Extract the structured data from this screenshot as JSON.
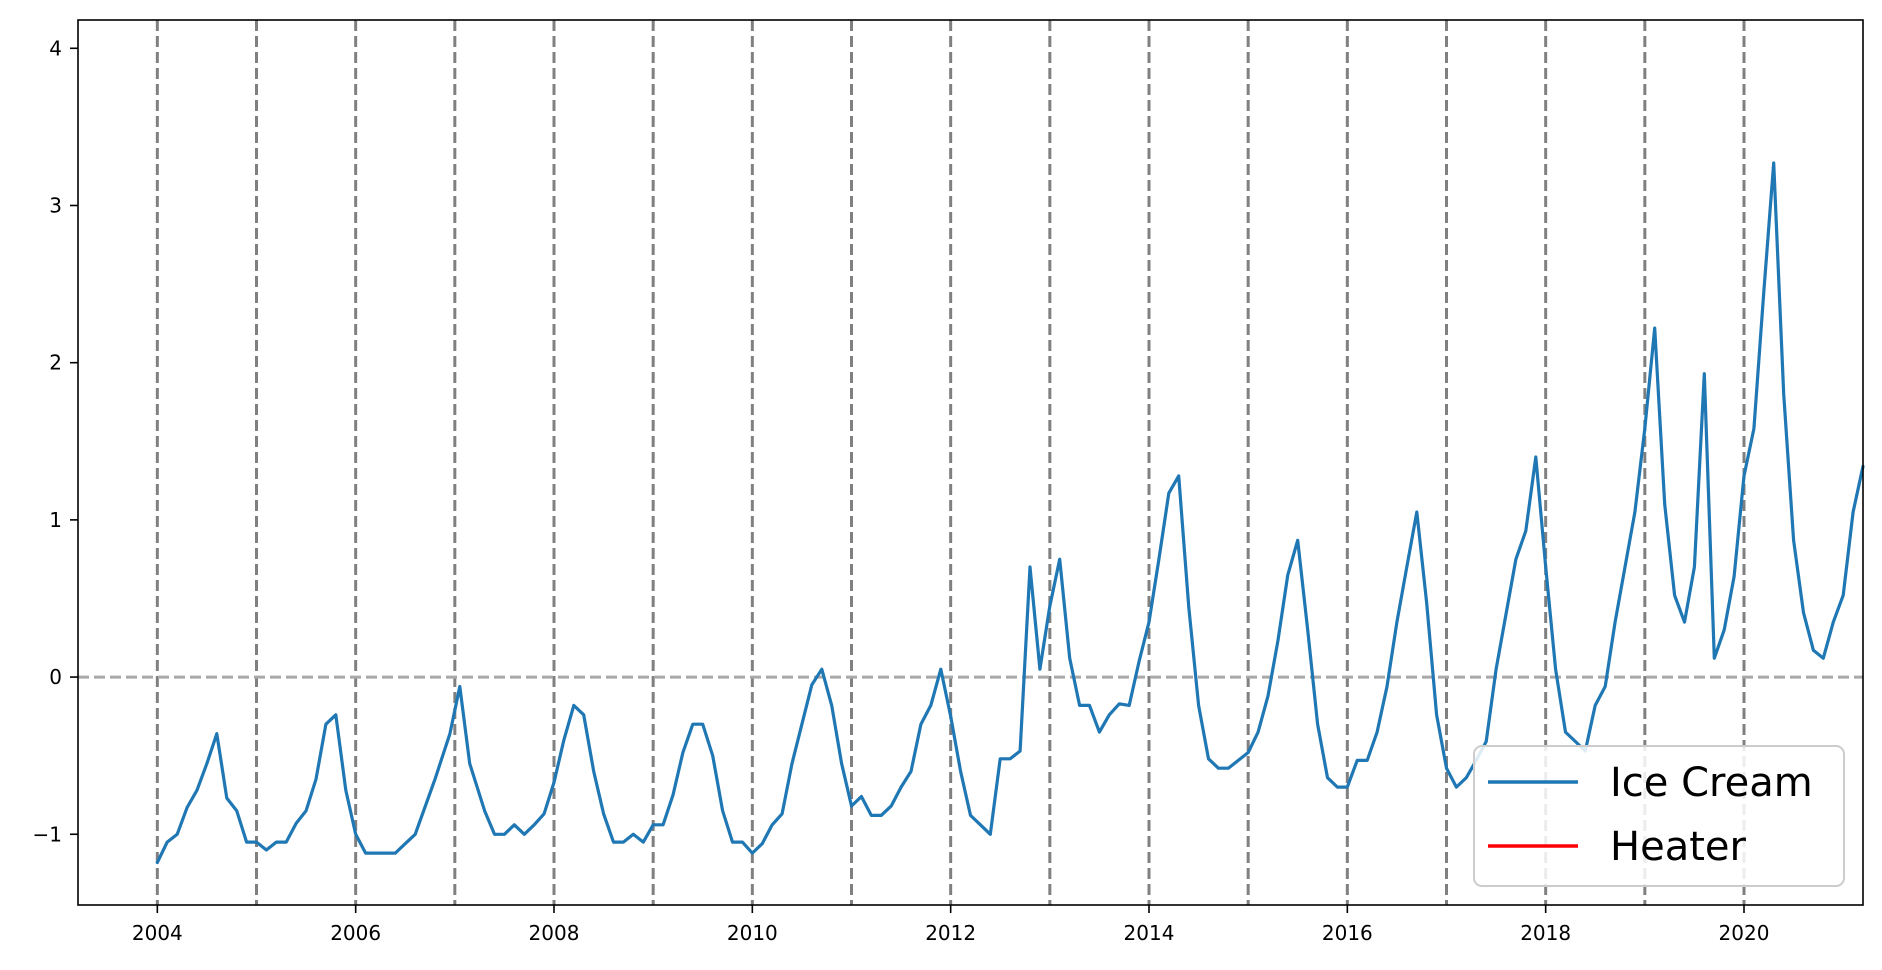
{
  "chart_data": {
    "type": "line",
    "title": "",
    "xlabel": "",
    "ylabel": "",
    "xlim": [
      2003.2,
      2021.2
    ],
    "ylim": [
      -1.45,
      4.18
    ],
    "x_ticks": [
      2004,
      2006,
      2008,
      2010,
      2012,
      2014,
      2016,
      2018,
      2020
    ],
    "y_ticks": [
      -1,
      0,
      1,
      2,
      3,
      4
    ],
    "vlines_years": [
      2004,
      2005,
      2006,
      2007,
      2008,
      2009,
      2010,
      2011,
      2012,
      2013,
      2014,
      2015,
      2016,
      2017,
      2018,
      2019,
      2020
    ],
    "hline_y": 0,
    "legend_position": "lower right",
    "series": [
      {
        "name": "Ice Cream",
        "color": "#1f77b4",
        "points": [
          [
            2004.0,
            -1.18
          ],
          [
            2004.1,
            -1.05
          ],
          [
            2004.2,
            -1.0
          ],
          [
            2004.3,
            -0.83
          ],
          [
            2004.4,
            -0.72
          ],
          [
            2004.5,
            -0.55
          ],
          [
            2004.6,
            -0.36
          ],
          [
            2004.7,
            -0.77
          ],
          [
            2004.8,
            -0.85
          ],
          [
            2004.9,
            -1.05
          ],
          [
            2005.0,
            -1.05
          ],
          [
            2005.1,
            -1.1
          ],
          [
            2005.2,
            -1.05
          ],
          [
            2005.3,
            -1.05
          ],
          [
            2005.4,
            -0.93
          ],
          [
            2005.5,
            -0.85
          ],
          [
            2005.6,
            -0.65
          ],
          [
            2005.7,
            -0.3
          ],
          [
            2005.8,
            -0.24
          ],
          [
            2005.9,
            -0.72
          ],
          [
            2006.0,
            -1.0
          ],
          [
            2006.1,
            -1.12
          ],
          [
            2006.2,
            -1.12
          ],
          [
            2006.3,
            -1.12
          ],
          [
            2006.4,
            -1.12
          ],
          [
            2006.5,
            -1.06
          ],
          [
            2006.6,
            -1.0
          ],
          [
            2006.8,
            -0.65
          ],
          [
            2006.95,
            -0.36
          ],
          [
            2007.05,
            -0.06
          ],
          [
            2007.15,
            -0.55
          ],
          [
            2007.3,
            -0.85
          ],
          [
            2007.4,
            -1.0
          ],
          [
            2007.5,
            -1.0
          ],
          [
            2007.6,
            -0.94
          ],
          [
            2007.7,
            -1.0
          ],
          [
            2007.8,
            -0.94
          ],
          [
            2007.9,
            -0.87
          ],
          [
            2008.0,
            -0.67
          ],
          [
            2008.1,
            -0.4
          ],
          [
            2008.2,
            -0.18
          ],
          [
            2008.3,
            -0.24
          ],
          [
            2008.4,
            -0.6
          ],
          [
            2008.5,
            -0.87
          ],
          [
            2008.6,
            -1.05
          ],
          [
            2008.7,
            -1.05
          ],
          [
            2008.8,
            -1.0
          ],
          [
            2008.9,
            -1.05
          ],
          [
            2009.0,
            -0.94
          ],
          [
            2009.1,
            -0.94
          ],
          [
            2009.2,
            -0.75
          ],
          [
            2009.3,
            -0.48
          ],
          [
            2009.4,
            -0.3
          ],
          [
            2009.5,
            -0.3
          ],
          [
            2009.6,
            -0.5
          ],
          [
            2009.7,
            -0.85
          ],
          [
            2009.8,
            -1.05
          ],
          [
            2009.9,
            -1.05
          ],
          [
            2010.0,
            -1.12
          ],
          [
            2010.1,
            -1.06
          ],
          [
            2010.2,
            -0.94
          ],
          [
            2010.3,
            -0.87
          ],
          [
            2010.4,
            -0.55
          ],
          [
            2010.5,
            -0.3
          ],
          [
            2010.6,
            -0.05
          ],
          [
            2010.7,
            0.05
          ],
          [
            2010.8,
            -0.18
          ],
          [
            2010.9,
            -0.55
          ],
          [
            2011.0,
            -0.82
          ],
          [
            2011.1,
            -0.76
          ],
          [
            2011.2,
            -0.88
          ],
          [
            2011.3,
            -0.88
          ],
          [
            2011.4,
            -0.82
          ],
          [
            2011.5,
            -0.7
          ],
          [
            2011.6,
            -0.6
          ],
          [
            2011.7,
            -0.3
          ],
          [
            2011.8,
            -0.18
          ],
          [
            2011.9,
            0.05
          ],
          [
            2012.0,
            -0.25
          ],
          [
            2012.1,
            -0.6
          ],
          [
            2012.2,
            -0.88
          ],
          [
            2012.3,
            -0.94
          ],
          [
            2012.4,
            -1.0
          ],
          [
            2012.5,
            -0.52
          ],
          [
            2012.6,
            -0.52
          ],
          [
            2012.7,
            -0.47
          ],
          [
            2012.8,
            0.7
          ],
          [
            2012.9,
            0.05
          ],
          [
            2013.0,
            0.45
          ],
          [
            2013.1,
            0.75
          ],
          [
            2013.2,
            0.12
          ],
          [
            2013.3,
            -0.18
          ],
          [
            2013.4,
            -0.18
          ],
          [
            2013.5,
            -0.35
          ],
          [
            2013.6,
            -0.24
          ],
          [
            2013.7,
            -0.17
          ],
          [
            2013.8,
            -0.18
          ],
          [
            2013.9,
            0.1
          ],
          [
            2014.0,
            0.35
          ],
          [
            2014.1,
            0.75
          ],
          [
            2014.2,
            1.17
          ],
          [
            2014.3,
            1.28
          ],
          [
            2014.4,
            0.45
          ],
          [
            2014.5,
            -0.18
          ],
          [
            2014.6,
            -0.52
          ],
          [
            2014.7,
            -0.58
          ],
          [
            2014.8,
            -0.58
          ],
          [
            2014.9,
            -0.53
          ],
          [
            2015.0,
            -0.48
          ],
          [
            2015.1,
            -0.35
          ],
          [
            2015.2,
            -0.12
          ],
          [
            2015.3,
            0.23
          ],
          [
            2015.4,
            0.65
          ],
          [
            2015.5,
            0.87
          ],
          [
            2015.6,
            0.3
          ],
          [
            2015.7,
            -0.3
          ],
          [
            2015.8,
            -0.64
          ],
          [
            2015.9,
            -0.7
          ],
          [
            2016.0,
            -0.7
          ],
          [
            2016.1,
            -0.53
          ],
          [
            2016.2,
            -0.53
          ],
          [
            2016.3,
            -0.35
          ],
          [
            2016.4,
            -0.06
          ],
          [
            2016.5,
            0.35
          ],
          [
            2016.6,
            0.7
          ],
          [
            2016.7,
            1.05
          ],
          [
            2016.8,
            0.47
          ],
          [
            2016.9,
            -0.24
          ],
          [
            2017.0,
            -0.58
          ],
          [
            2017.1,
            -0.7
          ],
          [
            2017.2,
            -0.64
          ],
          [
            2017.3,
            -0.53
          ],
          [
            2017.4,
            -0.41
          ],
          [
            2017.5,
            0.05
          ],
          [
            2017.6,
            0.4
          ],
          [
            2017.7,
            0.75
          ],
          [
            2017.8,
            0.93
          ],
          [
            2017.9,
            1.4
          ],
          [
            2018.0,
            0.7
          ],
          [
            2018.1,
            0.05
          ],
          [
            2018.2,
            -0.35
          ],
          [
            2018.3,
            -0.41
          ],
          [
            2018.4,
            -0.47
          ],
          [
            2018.5,
            -0.18
          ],
          [
            2018.6,
            -0.06
          ],
          [
            2018.7,
            0.35
          ],
          [
            2018.8,
            0.7
          ],
          [
            2018.9,
            1.05
          ],
          [
            2019.0,
            1.58
          ],
          [
            2019.1,
            2.22
          ],
          [
            2019.2,
            1.1
          ],
          [
            2019.3,
            0.52
          ],
          [
            2019.4,
            0.35
          ],
          [
            2019.5,
            0.7
          ],
          [
            2019.6,
            1.93
          ],
          [
            2019.7,
            0.12
          ],
          [
            2019.8,
            0.3
          ],
          [
            2019.9,
            0.64
          ],
          [
            2020.0,
            1.28
          ],
          [
            2020.1,
            1.58
          ],
          [
            2020.2,
            2.45
          ],
          [
            2020.3,
            3.27
          ],
          [
            2020.4,
            1.8
          ],
          [
            2020.5,
            0.87
          ],
          [
            2020.6,
            0.41
          ],
          [
            2020.7,
            0.17
          ],
          [
            2020.8,
            0.12
          ],
          [
            2020.9,
            0.35
          ],
          [
            2021.0,
            0.52
          ],
          [
            2021.1,
            1.05
          ],
          [
            2021.2,
            1.34
          ]
        ]
      },
      {
        "name": "Heater",
        "color": "#ff0000",
        "points": []
      }
    ]
  }
}
